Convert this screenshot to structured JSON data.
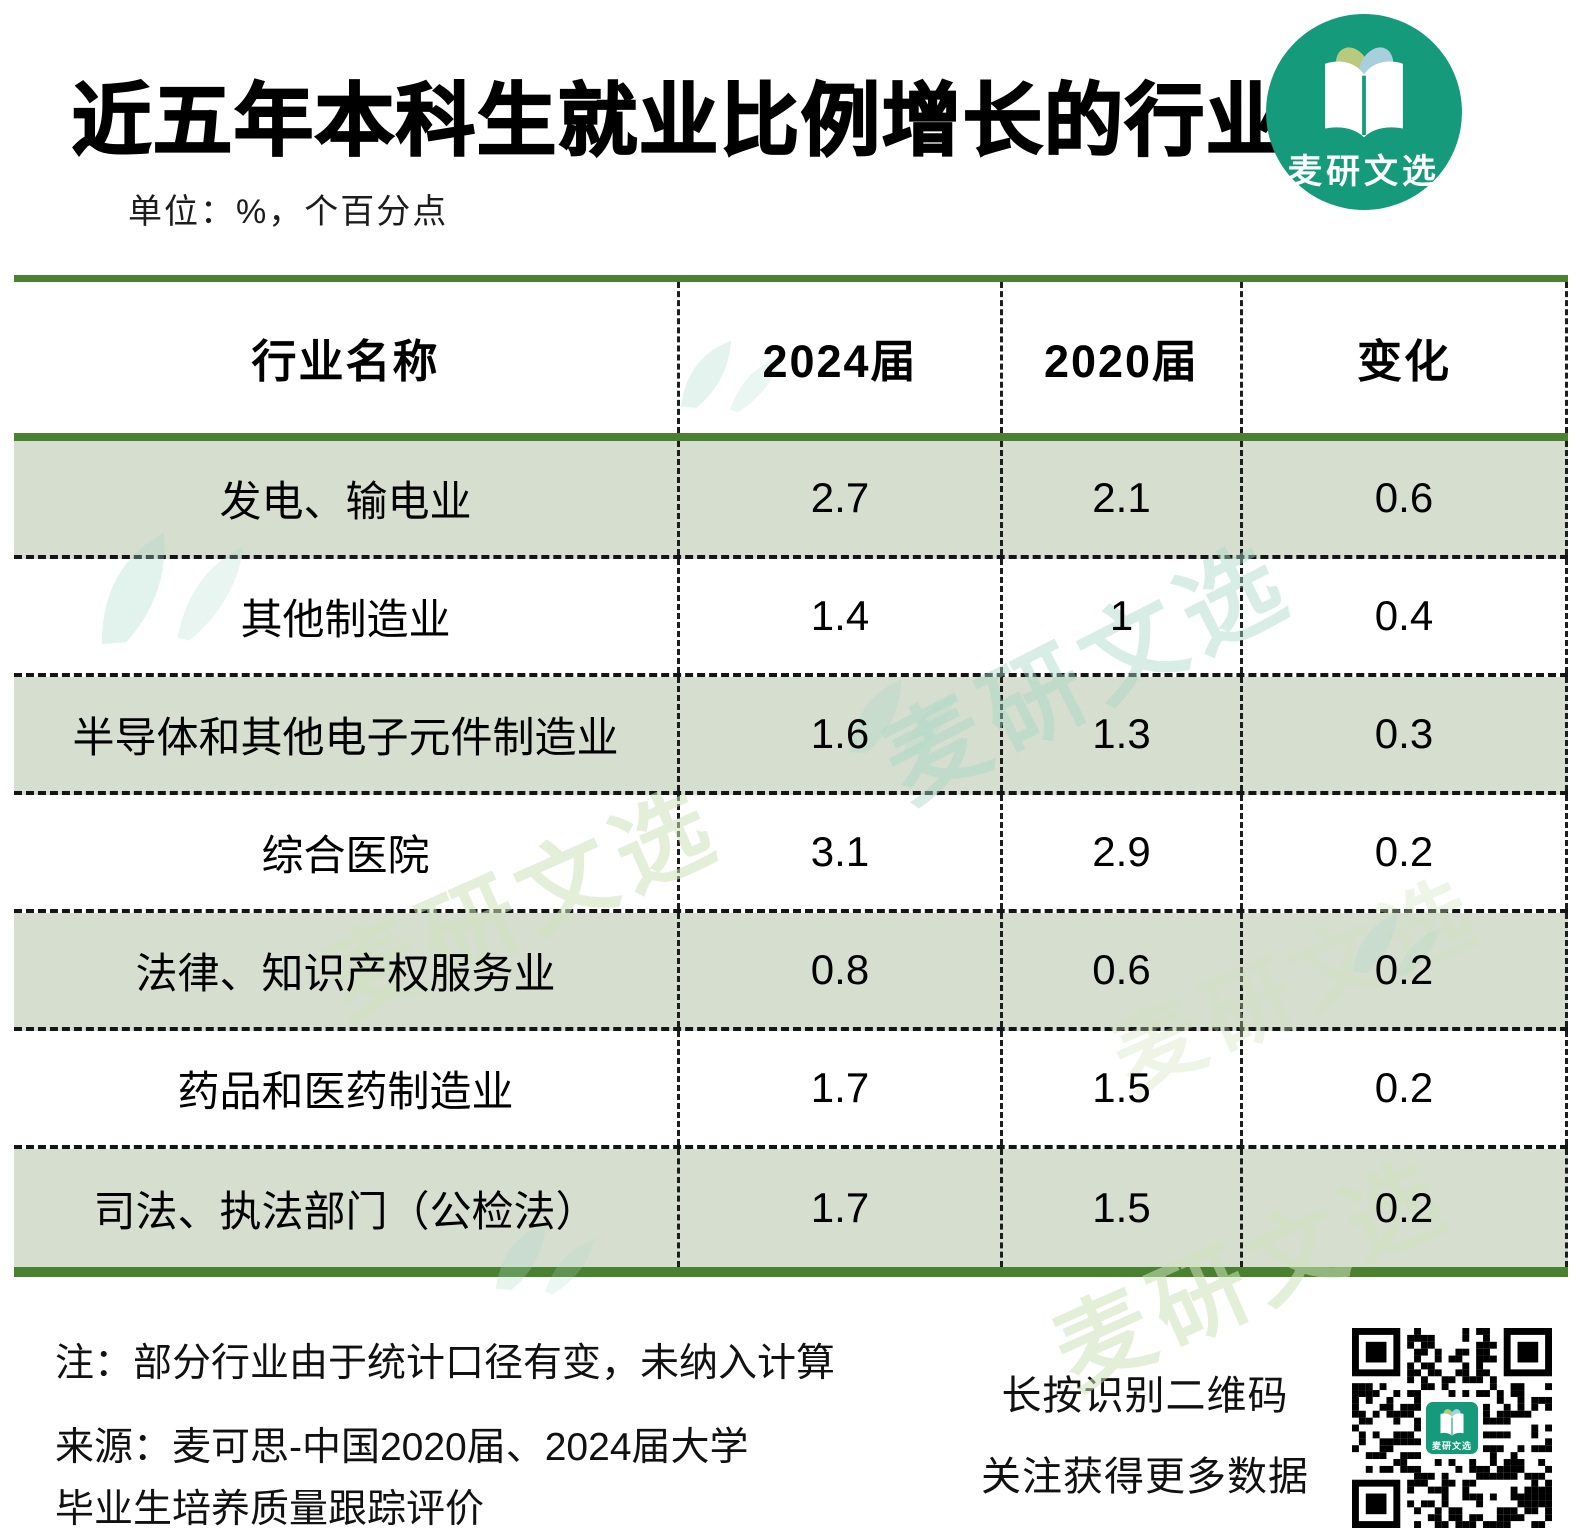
{
  "header": {
    "title": "近五年本科生就业比例增长的行业",
    "unit_note": "单位：%，个百分点"
  },
  "brand": {
    "name": "麦研文选"
  },
  "table": {
    "headers": [
      "行业名称",
      "2024届",
      "2020届",
      "变化"
    ],
    "rows": [
      {
        "industry": "发电、输电业",
        "y2024": "2.7",
        "y2020": "2.1",
        "change": "0.6"
      },
      {
        "industry": "其他制造业",
        "y2024": "1.4",
        "y2020": "1",
        "change": "0.4"
      },
      {
        "industry": "半导体和其他电子元件制造业",
        "y2024": "1.6",
        "y2020": "1.3",
        "change": "0.3"
      },
      {
        "industry": "综合医院",
        "y2024": "3.1",
        "y2020": "2.9",
        "change": "0.2"
      },
      {
        "industry": "法律、知识产权服务业",
        "y2024": "0.8",
        "y2020": "0.6",
        "change": "0.2"
      },
      {
        "industry": "药品和医药制造业",
        "y2024": "1.7",
        "y2020": "1.5",
        "change": "0.2"
      },
      {
        "industry": "司法、执法部门（公检法）",
        "y2024": "1.7",
        "y2020": "1.5",
        "change": "0.2"
      }
    ]
  },
  "chart_data": {
    "type": "table",
    "title": "近五年本科生就业比例增长的行业",
    "unit": "%，个百分点",
    "columns": [
      "行业名称",
      "2024届",
      "2020届",
      "变化"
    ],
    "rows": [
      [
        "发电、输电业",
        2.7,
        2.1,
        0.6
      ],
      [
        "其他制造业",
        1.4,
        1,
        0.4
      ],
      [
        "半导体和其他电子元件制造业",
        1.6,
        1.3,
        0.3
      ],
      [
        "综合医院",
        3.1,
        2.9,
        0.2
      ],
      [
        "法律、知识产权服务业",
        0.8,
        0.6,
        0.2
      ],
      [
        "药品和医药制造业",
        1.7,
        1.5,
        0.2
      ],
      [
        "司法、执法部门（公检法）",
        1.7,
        1.5,
        0.2
      ]
    ],
    "source": "麦可思-中国2020届、2024届大学毕业生培养质量跟踪评价"
  },
  "footer": {
    "note": "注：部分行业由于统计口径有变，未纳入计算",
    "source_line1": "来源：麦可思-中国2020届、2024届大学",
    "source_line2": "毕业生培养质量跟踪评价",
    "qr_caption_line1": "长按识别二维码",
    "qr_caption_line2": "关注获得更多数据"
  },
  "watermark": {
    "text": "麦研文选"
  },
  "colors": {
    "accent-green": "#4a8130",
    "row-green": "#d6ded0",
    "brand-teal": "#159b7c",
    "leaf-olive": "#b9c97e",
    "leaf-blue": "#a9cfdc",
    "wm-teal": "#a8d9c6",
    "wm-green": "#cfe3bd"
  }
}
